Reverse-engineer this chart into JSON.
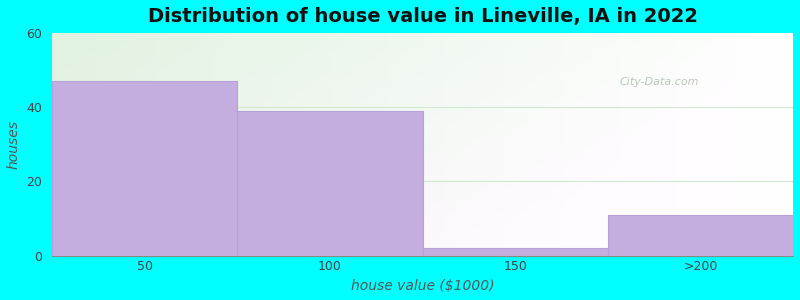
{
  "title": "Distribution of house value in Lineville, IA in 2022",
  "xlabel": "house value ($1000)",
  "ylabel": "houses",
  "categories": [
    "50",
    "100",
    "150",
    ">200"
  ],
  "values": [
    47,
    39,
    2,
    11
  ],
  "bar_color": "#C4AEE0",
  "bar_edge_color": "#B8A0D8",
  "ylim": [
    0,
    60
  ],
  "yticks": [
    0,
    20,
    40,
    60
  ],
  "background_outer": "#00FFFF",
  "bar_width": 1.0,
  "title_fontsize": 14,
  "label_fontsize": 10,
  "tick_fontsize": 9,
  "watermark": "City-Data.com",
  "watermark_color": "#BBCCBB",
  "grid_color": "#D0E8D0",
  "axis_color": "#888888"
}
